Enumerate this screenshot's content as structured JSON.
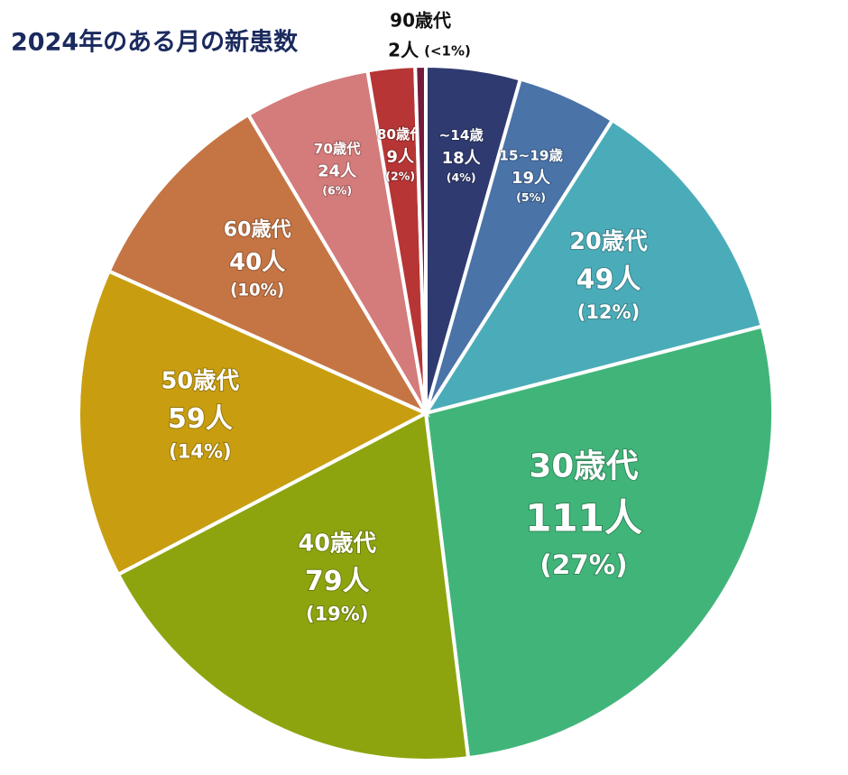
{
  "chart_data": {
    "type": "pie",
    "title": "2024年のある月の新患数",
    "categories": [
      "~14歳",
      "15~19歳",
      "20歳代",
      "30歳代",
      "40歳代",
      "50歳代",
      "60歳代",
      "70歳代",
      "80歳代",
      "90歳代"
    ],
    "values": [
      18,
      19,
      49,
      111,
      79,
      59,
      40,
      24,
      9,
      2
    ],
    "value_labels": [
      "18人",
      "19人",
      "49人",
      "111人",
      "79人",
      "59人",
      "40人",
      "24人",
      "9人",
      "2人"
    ],
    "percent_labels": [
      "(4%)",
      "(5%)",
      "(12%)",
      "(27%)",
      "(19%)",
      "(14%)",
      "(10%)",
      "(6%)",
      "(2%)",
      "(<1%)"
    ],
    "colors": [
      "#2f3b70",
      "#4a73a8",
      "#4bacb9",
      "#41b579",
      "#8ea40f",
      "#c89e10",
      "#c57544",
      "#d47b7b",
      "#b73535",
      "#741b3c"
    ]
  }
}
